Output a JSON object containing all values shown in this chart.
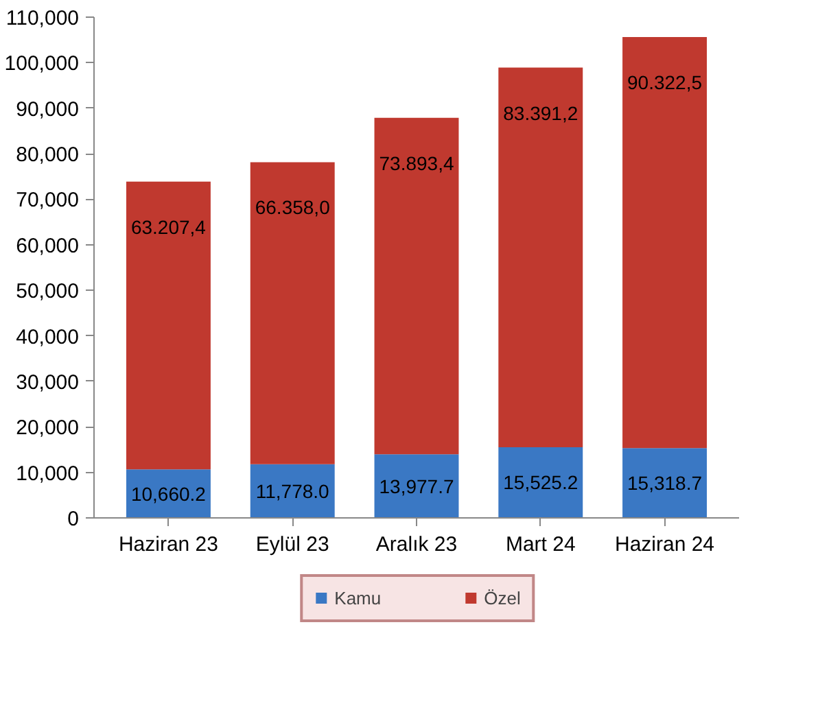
{
  "chart_data": {
    "type": "bar",
    "stacked": true,
    "categories": [
      "Haziran 23",
      "Eylül 23",
      "Aralık 23",
      "Mart 24",
      "Haziran 24"
    ],
    "series": [
      {
        "name": "Kamu",
        "color": "#3a78c4",
        "values": [
          10660.2,
          11778.0,
          13977.7,
          15525.2,
          15318.7
        ],
        "value_labels": [
          "10,660.2",
          "11,778.0",
          "13,977.7",
          "15,525.2",
          "15,318.7"
        ]
      },
      {
        "name": "Özel",
        "color": "#c0392f",
        "values": [
          63207.4,
          66358.0,
          73893.4,
          83391.2,
          90322.5
        ],
        "value_labels": [
          "63.207,4",
          "66.358,0",
          "73.893,4",
          "83.391,2",
          "90.322,5"
        ]
      }
    ],
    "ylim": [
      0,
      110000
    ],
    "yticks": [
      0,
      {
        "value": 10000,
        "label": "10,000"
      },
      {
        "value": 20000,
        "label": "20,000"
      },
      {
        "value": 30000,
        "label": "30,000"
      },
      {
        "value": 40000,
        "label": "40,000"
      },
      {
        "value": 50000,
        "label": "50,000"
      },
      {
        "value": 60000,
        "label": "60,000"
      },
      {
        "value": 70000,
        "label": "70,000"
      },
      {
        "value": 80000,
        "label": "80,000"
      },
      {
        "value": 90000,
        "label": "90,000"
      },
      {
        "value": 100000,
        "label": "100,000"
      },
      {
        "value": 110000,
        "label": "110,000"
      }
    ],
    "grid": false,
    "legend": "bottom"
  }
}
